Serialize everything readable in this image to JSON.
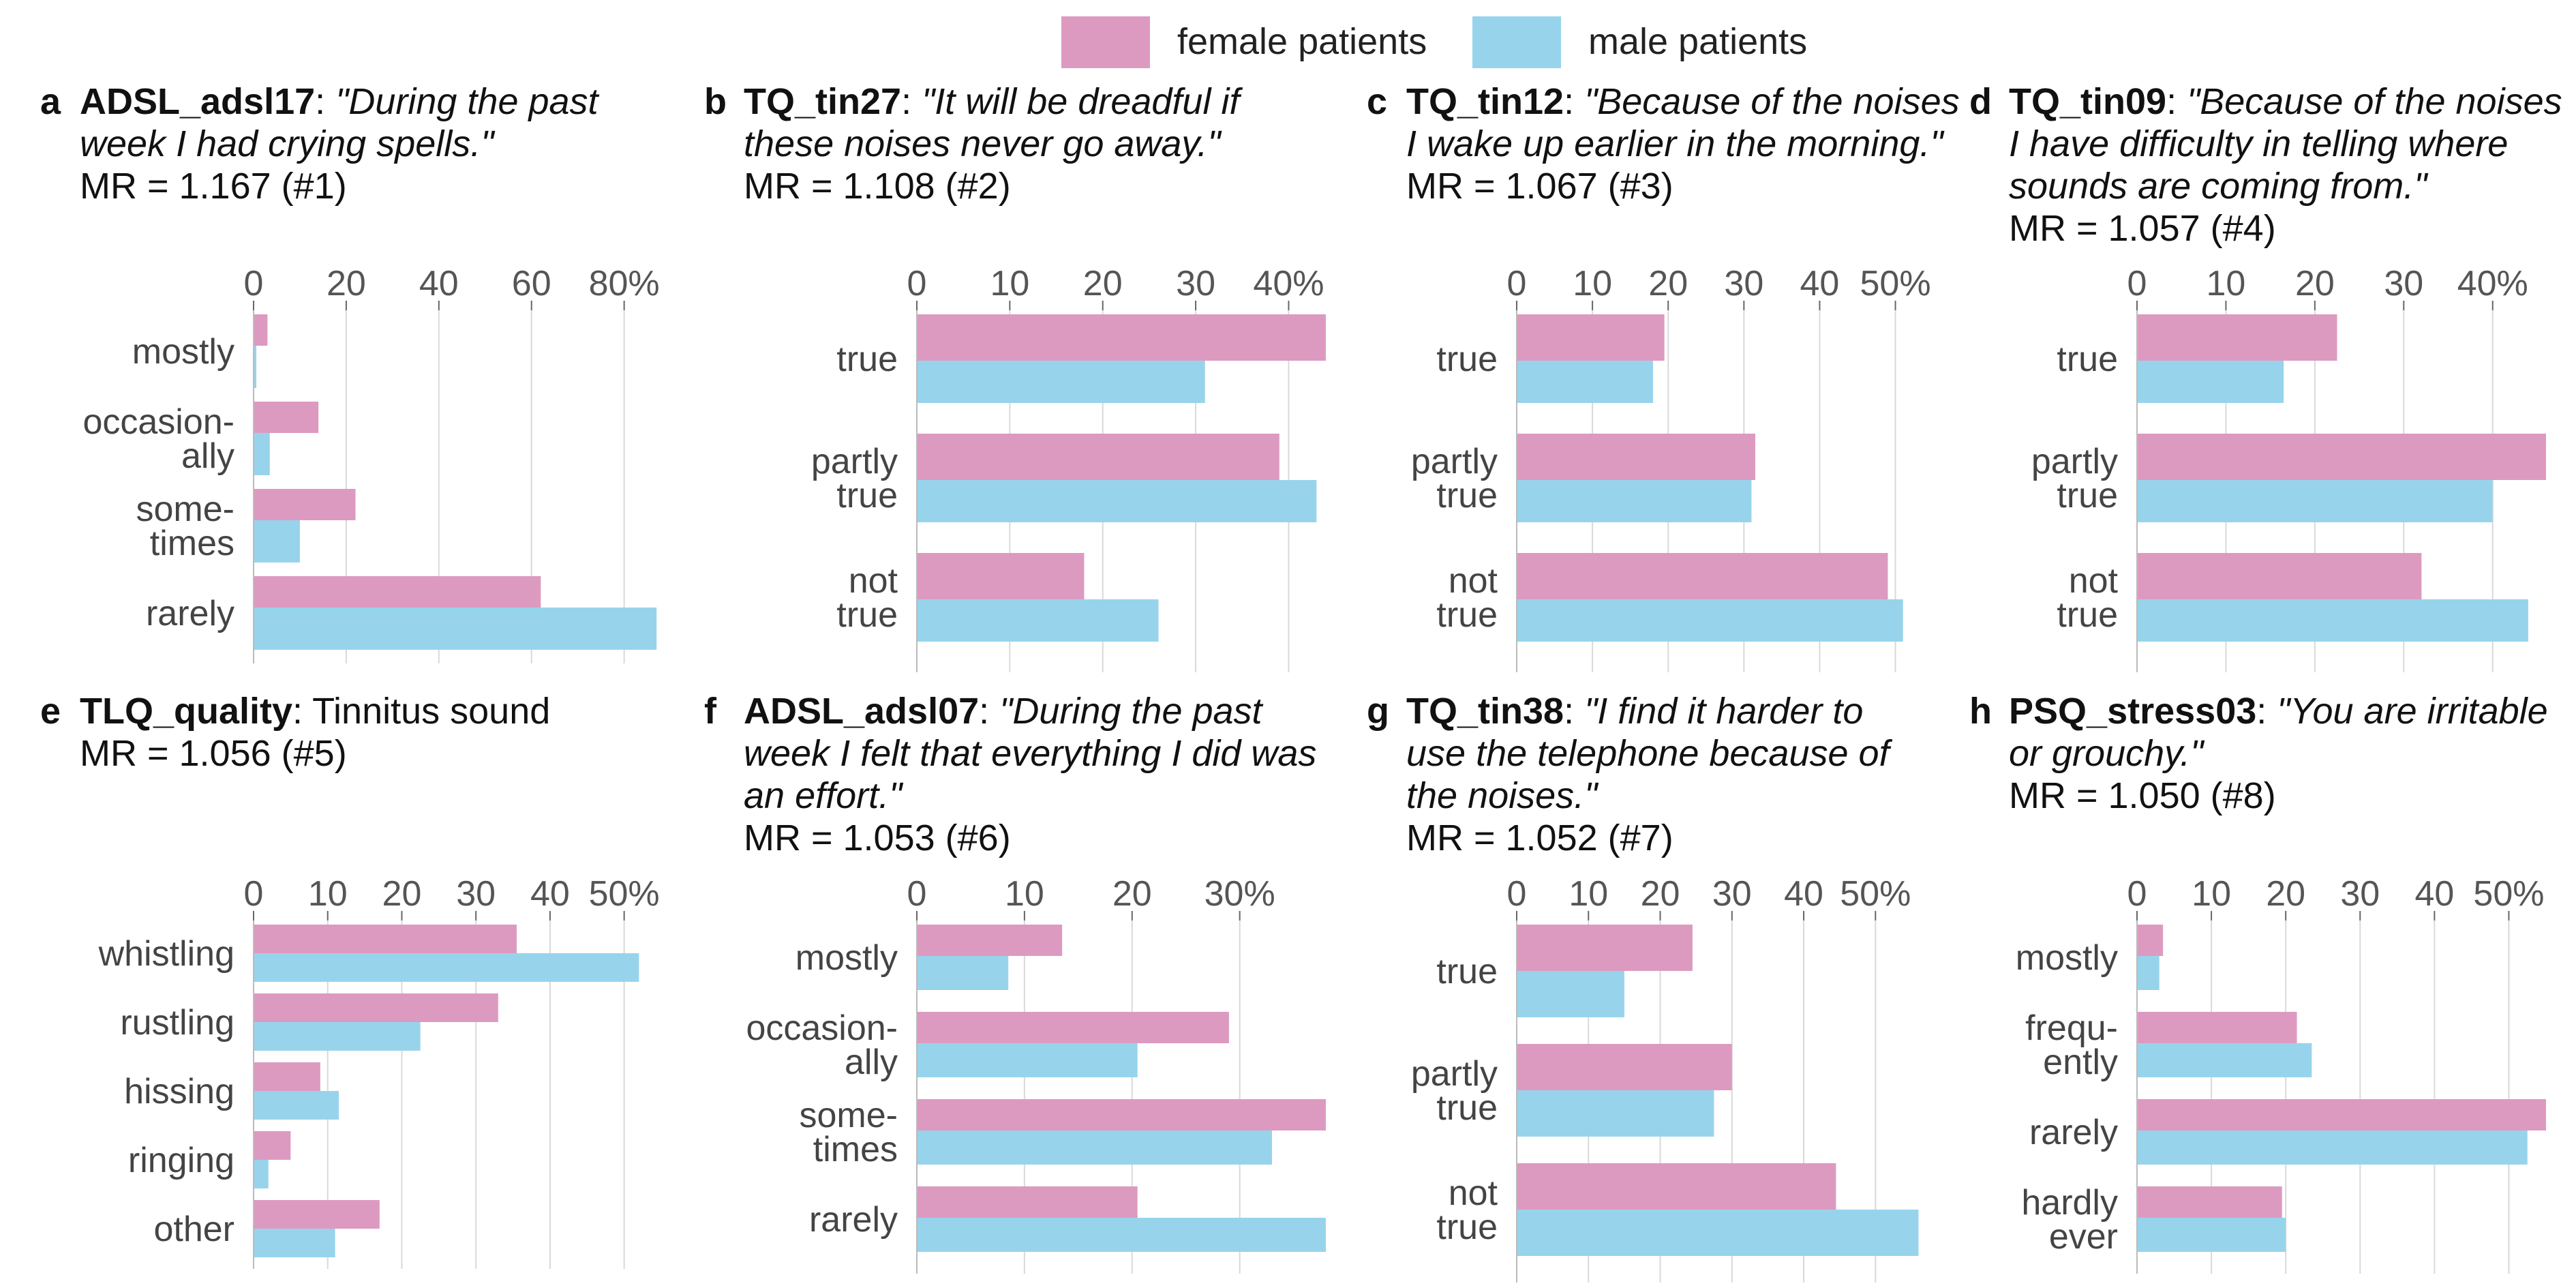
{
  "legend": {
    "female": {
      "label": "female patients",
      "color": "#dd9ac0"
    },
    "male": {
      "label": "male patients",
      "color": "#97d4ec"
    }
  },
  "chart_data": [
    {
      "letter": "a",
      "type": "bar",
      "variable": "ADSL_adsl17",
      "quote": "\"During the past week I had crying spells.\"",
      "quote_lines": [
        "\"During the past",
        "week I had crying spells.\""
      ],
      "mr": "MR = 1.167 (#1)",
      "ticks": [
        "0",
        "20",
        "40",
        "60",
        "80%"
      ],
      "tick_values": [
        0,
        20,
        40,
        60,
        80
      ],
      "xlim": [
        0,
        88
      ],
      "categories": [
        [
          "mostly"
        ],
        [
          "occasion-",
          "ally"
        ],
        [
          "some-",
          "times"
        ],
        [
          "rarely"
        ]
      ],
      "series": [
        {
          "name": "female patients",
          "values": [
            3,
            14,
            22,
            62
          ]
        },
        {
          "name": "male patients",
          "values": [
            0.6,
            3.5,
            10,
            87
          ]
        }
      ]
    },
    {
      "letter": "b",
      "type": "bar",
      "variable": "TQ_tin27",
      "quote": "\"It will be dreadful if these noises never go away.\"",
      "quote_lines": [
        "\"It will be dreadful if",
        "these noises never go away.\""
      ],
      "mr": "MR = 1.108 (#2)",
      "ticks": [
        "0",
        "10",
        "20",
        "30",
        "40%"
      ],
      "tick_values": [
        0,
        10,
        20,
        30,
        40
      ],
      "xlim": [
        0,
        44
      ],
      "categories": [
        [
          "true"
        ],
        [
          "partly",
          "true"
        ],
        [
          "not",
          "true"
        ]
      ],
      "series": [
        {
          "name": "female patients",
          "values": [
            44,
            39,
            18
          ]
        },
        {
          "name": "male patients",
          "values": [
            31,
            43,
            26
          ]
        }
      ]
    },
    {
      "letter": "c",
      "type": "bar",
      "variable": "TQ_tin12",
      "quote": "\"Because of the noises I wake up earlier in the morning.\"",
      "quote_lines": [
        "\"Because of the noises",
        "I wake up earlier in the morning.\""
      ],
      "mr": "MR = 1.067 (#3)",
      "ticks": [
        "0",
        "10",
        "20",
        "30",
        "40",
        "50%"
      ],
      "tick_values": [
        0,
        10,
        20,
        30,
        40,
        50
      ],
      "xlim": [
        0,
        54
      ],
      "categories": [
        [
          "true"
        ],
        [
          "partly",
          "true"
        ],
        [
          "not",
          "true"
        ]
      ],
      "series": [
        {
          "name": "female patients",
          "values": [
            19.5,
            31.5,
            49
          ]
        },
        {
          "name": "male patients",
          "values": [
            18,
            31,
            51
          ]
        }
      ]
    },
    {
      "letter": "d",
      "type": "bar",
      "variable": "TQ_tin09",
      "quote": "\"Because of the noises I have difficulty in telling where sounds are coming from.\"",
      "quote_lines": [
        "\"Because of the noises",
        "I have difficulty in telling where",
        "sounds are coming from.\""
      ],
      "mr": "MR = 1.057 (#4)",
      "ticks": [
        "0",
        "10",
        "20",
        "30",
        "40%"
      ],
      "tick_values": [
        0,
        10,
        20,
        30,
        40
      ],
      "xlim": [
        0,
        46
      ],
      "categories": [
        [
          "true"
        ],
        [
          "partly",
          "true"
        ],
        [
          "not",
          "true"
        ]
      ],
      "series": [
        {
          "name": "female patients",
          "values": [
            22.5,
            46,
            32
          ]
        },
        {
          "name": "male patients",
          "values": [
            16.5,
            40,
            44
          ]
        }
      ]
    },
    {
      "letter": "e",
      "type": "bar",
      "variable": "TLQ_quality",
      "quote": "Tinnitus sound",
      "quote_lines": [
        "Tinnitus sound"
      ],
      "quote_plain": true,
      "mr": "MR = 1.056 (#5)",
      "ticks": [
        "0",
        "10",
        "20",
        "30",
        "40",
        "50%"
      ],
      "tick_values": [
        0,
        10,
        20,
        30,
        40,
        50
      ],
      "xlim": [
        0,
        55
      ],
      "categories": [
        [
          "whistling"
        ],
        [
          "rustling"
        ],
        [
          "hissing"
        ],
        [
          "ringing"
        ],
        [
          "other"
        ]
      ],
      "series": [
        {
          "name": "female patients",
          "values": [
            35.5,
            33,
            9,
            5,
            17
          ]
        },
        {
          "name": "male patients",
          "values": [
            52,
            22.5,
            11.5,
            2,
            11
          ]
        }
      ]
    },
    {
      "letter": "f",
      "type": "bar",
      "variable": "ADSL_adsl07",
      "quote": "\"During the past week I felt that everything I did was an effort.\"",
      "quote_lines": [
        "\"During the past",
        "week I felt that everything I did was",
        "an effort.\""
      ],
      "mr": "MR = 1.053 (#6)",
      "ticks": [
        "0",
        "10",
        "20",
        "30%"
      ],
      "tick_values": [
        0,
        10,
        20,
        30
      ],
      "xlim": [
        0,
        38
      ],
      "categories": [
        [
          "mostly"
        ],
        [
          "occasion-",
          "ally"
        ],
        [
          "some-",
          "times"
        ],
        [
          "rarely"
        ]
      ],
      "series": [
        {
          "name": "female patients",
          "values": [
            13.5,
            29,
            38,
            20.5
          ]
        },
        {
          "name": "male patients",
          "values": [
            8.5,
            20.5,
            33,
            38
          ]
        }
      ]
    },
    {
      "letter": "g",
      "type": "bar",
      "variable": "TQ_tin38",
      "quote": "\"I find it harder to use the telephone because of the noises.\"",
      "quote_lines": [
        "\"I find it harder to",
        "use the telephone because of",
        "the noises.\""
      ],
      "mr": "MR = 1.052 (#7)",
      "ticks": [
        "0",
        "10",
        "20",
        "30",
        "40",
        "50%"
      ],
      "tick_values": [
        0,
        10,
        20,
        30,
        40,
        50
      ],
      "xlim": [
        0,
        57
      ],
      "categories": [
        [
          "true"
        ],
        [
          "partly",
          "true"
        ],
        [
          "not",
          "true"
        ]
      ],
      "series": [
        {
          "name": "female patients",
          "values": [
            24.5,
            30,
            44.5
          ]
        },
        {
          "name": "male patients",
          "values": [
            15,
            27.5,
            56
          ]
        }
      ]
    },
    {
      "letter": "h",
      "type": "bar",
      "variable": "PSQ_stress03",
      "quote": "\"You are irritable or grouchy.\"",
      "quote_lines": [
        "\"You are irritable",
        "or grouchy.\""
      ],
      "mr": "MR = 1.050 (#8)",
      "ticks": [
        "0",
        "10",
        "20",
        "30",
        "40",
        "50%"
      ],
      "tick_values": [
        0,
        10,
        20,
        30,
        40,
        50
      ],
      "xlim": [
        0,
        55
      ],
      "categories": [
        [
          "mostly"
        ],
        [
          "frequ-",
          "ently"
        ],
        [
          "rarely"
        ],
        [
          "hardly",
          "ever"
        ]
      ],
      "series": [
        {
          "name": "female patients",
          "values": [
            3.5,
            21.5,
            55,
            19.5
          ]
        },
        {
          "name": "male patients",
          "values": [
            3,
            23.5,
            52.5,
            20
          ]
        }
      ]
    }
  ]
}
